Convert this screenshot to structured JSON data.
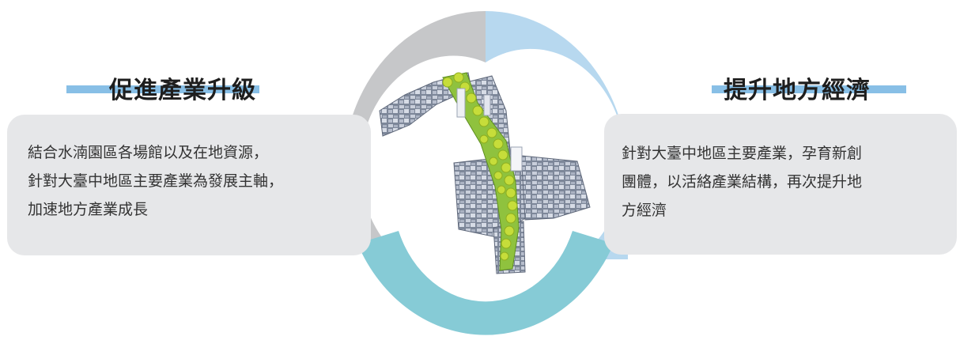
{
  "colors": {
    "ring_gray": "#c6c7c9",
    "ring_blue": "#b7d8ef",
    "ring_teal": "#86cbd6",
    "underline_blue": "#88bfe6",
    "card_bg": "#e6e7e9"
  },
  "left": {
    "heading": "促進產業升級",
    "lines": [
      "結合水湳園區各場館以及在地資源，",
      "針對大臺中地區主要產業為發展主軸，",
      "加速地方產業成長"
    ]
  },
  "right": {
    "heading": "提升地方經濟",
    "lines": [
      "針對大臺中地區主要產業，孕育新創",
      "團體，以活絡產業結構，再次提升地",
      "方經濟"
    ]
  },
  "center": {
    "image": "city-park-map-icon"
  }
}
